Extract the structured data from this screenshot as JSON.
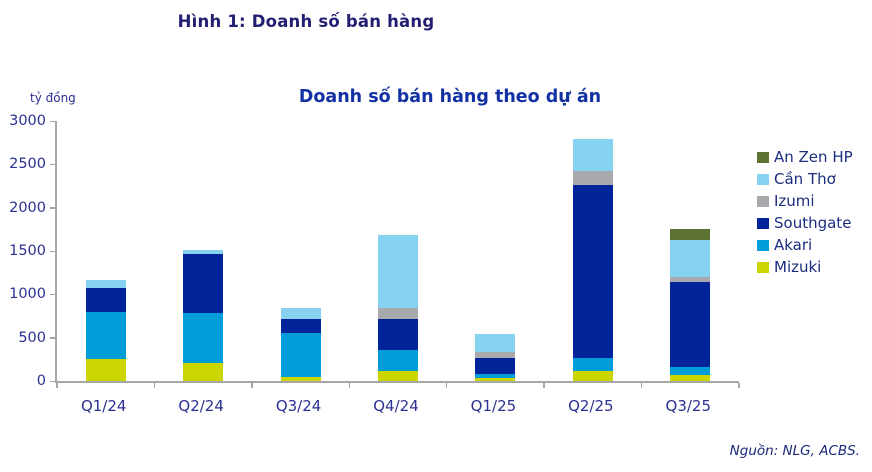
{
  "figure": {
    "title": "Hình 1: Doanh số bán hàng",
    "source": "Nguồn: NLG, ACBS."
  },
  "chart_data": {
    "type": "bar",
    "stacked": true,
    "title": "Doanh số bán hàng theo dự án",
    "unit_label": "tỷ đồng",
    "categories": [
      "Q1/24",
      "Q2/24",
      "Q3/24",
      "Q4/24",
      "Q1/25",
      "Q2/25",
      "Q3/25"
    ],
    "series": [
      {
        "name": "Mizuki",
        "color": "#cbd600",
        "values": [
          250,
          210,
          50,
          110,
          30,
          110,
          70
        ]
      },
      {
        "name": "Akari",
        "color": "#009dd9",
        "values": [
          550,
          570,
          500,
          250,
          50,
          160,
          90
        ]
      },
      {
        "name": "Southgate",
        "color": "#02249a",
        "values": [
          270,
          680,
          160,
          350,
          190,
          1990,
          980
        ]
      },
      {
        "name": "Izumi",
        "color": "#a7a9ac",
        "values": [
          0,
          0,
          0,
          130,
          60,
          160,
          60
        ]
      },
      {
        "name": "Cần Thơ",
        "color": "#87d2f0",
        "values": [
          100,
          50,
          130,
          850,
          210,
          370,
          430
        ]
      },
      {
        "name": "An Zen HP",
        "color": "#5d7233",
        "values": [
          0,
          0,
          0,
          0,
          0,
          0,
          120
        ]
      }
    ],
    "totals": [
      1170,
      1510,
      840,
      1690,
      540,
      2790,
      1750
    ],
    "ylim": [
      0,
      3000
    ],
    "yticks": [
      0,
      500,
      1000,
      1500,
      2000,
      2500,
      3000
    ],
    "legend_position": "right",
    "legend_order_top_to_bottom": [
      "An Zen HP",
      "Cần Thơ",
      "Izumi",
      "Southgate",
      "Akari",
      "Mizuki"
    ],
    "grid": false,
    "axis_color": "#a6a6a6",
    "tick_label_color": "#2b3092"
  }
}
